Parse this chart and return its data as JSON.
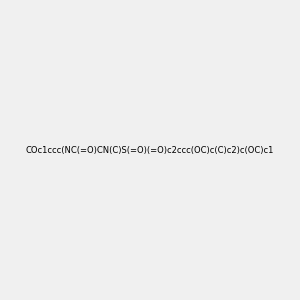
{
  "smiles": "COc1ccc(NC(=O)CN(C)S(=O)(=O)c2ccc(OC)c(C)c2)c(OC)c1",
  "image_size": 300,
  "background_color": "#f0f0f0",
  "title": "",
  "dpi": 100,
  "figsize": [
    3.0,
    3.0
  ]
}
